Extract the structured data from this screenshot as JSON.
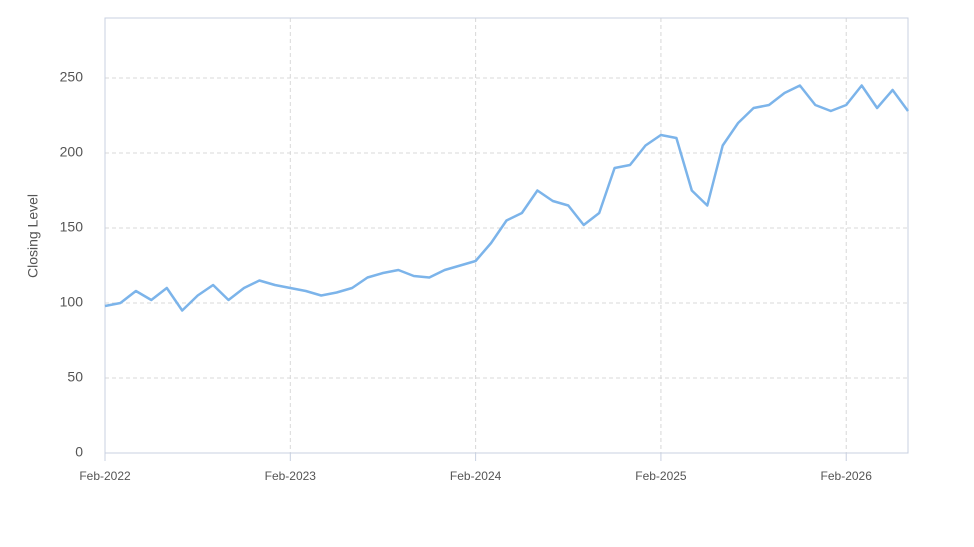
{
  "chart_data": {
    "type": "line",
    "y_label": "Closing Level",
    "x": [
      "2022-02",
      "2022-03",
      "2022-04",
      "2022-05",
      "2022-06",
      "2022-07",
      "2022-08",
      "2022-09",
      "2022-10",
      "2022-11",
      "2022-12",
      "2023-01",
      "2023-02",
      "2023-03",
      "2023-04",
      "2023-05",
      "2023-06",
      "2023-07",
      "2023-08",
      "2023-09",
      "2023-10",
      "2023-11",
      "2023-12",
      "2024-01",
      "2024-02",
      "2024-03",
      "2024-04",
      "2024-05",
      "2024-06",
      "2024-07",
      "2024-08",
      "2024-09",
      "2024-10",
      "2024-11",
      "2024-12",
      "2025-01",
      "2025-02",
      "2025-03",
      "2025-04",
      "2025-05",
      "2025-06",
      "2025-07",
      "2025-08",
      "2025-09",
      "2025-10",
      "2025-11",
      "2025-12",
      "2026-01",
      "2026-02",
      "2026-03",
      "2026-04",
      "2026-05",
      "2026-06"
    ],
    "series": [
      {
        "name": "Closing Level",
        "color": "#7cb4ea",
        "values": [
          98,
          100,
          108,
          102,
          110,
          95,
          105,
          112,
          102,
          110,
          115,
          112,
          110,
          108,
          105,
          107,
          110,
          117,
          120,
          122,
          118,
          117,
          122,
          125,
          128,
          140,
          155,
          160,
          175,
          168,
          165,
          152,
          160,
          190,
          192,
          205,
          212,
          210,
          175,
          165,
          205,
          220,
          230,
          232,
          240,
          245,
          232,
          228,
          232,
          245,
          230,
          242,
          228
        ]
      }
    ],
    "xlim": [
      "2022-02",
      "2026-06"
    ],
    "xticks": [
      {
        "value": "2022-02",
        "label": "Feb-2022"
      },
      {
        "value": "2023-02",
        "label": "Feb-2023"
      },
      {
        "value": "2024-02",
        "label": "Feb-2024"
      },
      {
        "value": "2025-02",
        "label": "Feb-2025"
      },
      {
        "value": "2026-02",
        "label": "Feb-2026"
      }
    ],
    "ylim": [
      0,
      290
    ],
    "yticks": [
      0,
      50,
      100,
      150,
      200,
      250
    ],
    "grid": true
  }
}
